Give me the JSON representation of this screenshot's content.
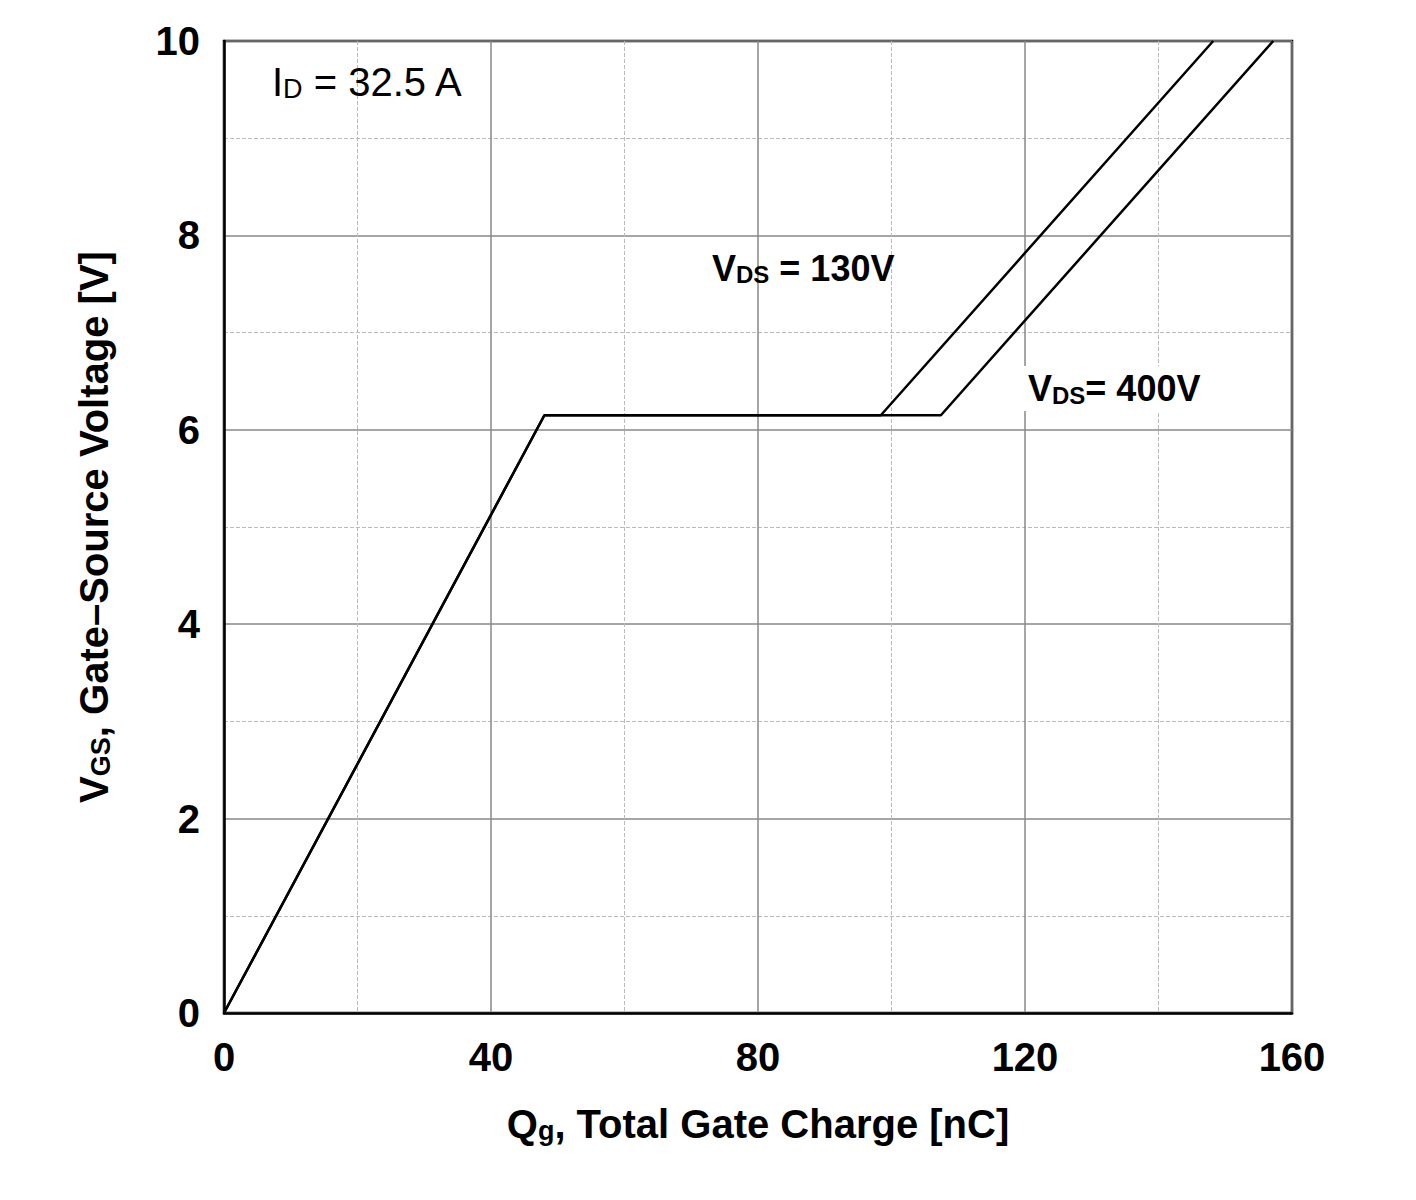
{
  "chart_data": {
    "type": "line",
    "x_label": [
      {
        "text": "Q"
      },
      {
        "text": "g",
        "sub": true
      },
      {
        "text": ", Total Gate Charge [nC]"
      }
    ],
    "y_label": [
      {
        "text": "V"
      },
      {
        "text": "GS",
        "sub": true
      },
      {
        "text": ", Gate–Source Voltage [V]"
      }
    ],
    "annotations": [
      [
        {
          "text": "I"
        },
        {
          "text": "D",
          "sub": true
        },
        {
          "text": " = 32.5 A"
        }
      ],
      [
        {
          "text": "V"
        },
        {
          "text": "DS",
          "sub": true
        },
        {
          "text": " = 130V"
        }
      ],
      [
        {
          "text": "V"
        },
        {
          "text": "DS",
          "sub": true
        },
        {
          "text": "= 400V"
        }
      ]
    ],
    "xlim": [
      0,
      160
    ],
    "xticks": [
      0,
      40,
      80,
      120,
      160
    ],
    "ylim": [
      0,
      10
    ],
    "yticks": [
      0,
      2,
      4,
      6,
      8,
      10
    ],
    "grid": true,
    "series": [
      {
        "name": "VDS = 130V",
        "color": "#000000",
        "x": [
          0,
          48,
          98.4,
          148.2
        ],
        "values": [
          0,
          6.15,
          6.15,
          10
        ]
      },
      {
        "name": "VDS = 400V",
        "color": "#000000",
        "x": [
          0,
          48,
          107.4,
          157.2
        ],
        "values": [
          0,
          6.15,
          6.15,
          10
        ]
      }
    ]
  }
}
